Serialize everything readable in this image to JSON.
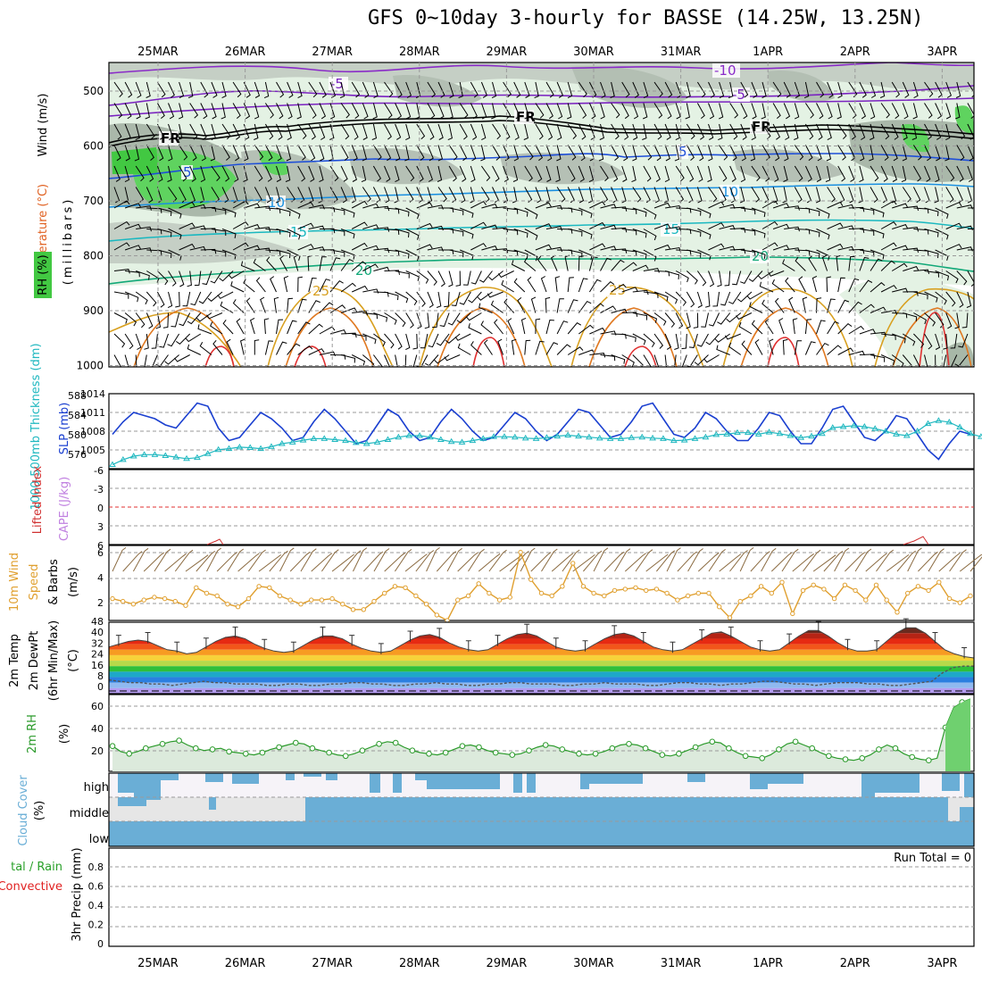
{
  "title": "GFS 0~10day 3-hourly for BASSE (14.25W, 13.25N)",
  "dates": [
    "25MAR",
    "26MAR",
    "27MAR",
    "28MAR",
    "29MAR",
    "30MAR",
    "31MAR",
    "1APR",
    "2APR",
    "3APR"
  ],
  "colors": {
    "frame": "#000000",
    "grid": "#9a9a9a",
    "rh_light": "#e4f2e4",
    "rh_mid": "#a8b8a8",
    "rh_high": "#5fd35f",
    "t_m10": "#8a2bc8",
    "t_m5": "#7a22c0",
    "t_fr": "#000000",
    "t_5": "#1f4fd8",
    "t_10": "#1a8fe0",
    "t_15": "#1ab8c0",
    "t_20": "#12a878",
    "t_25": "#d8a020",
    "t_30": "#e07820",
    "t_35": "#e03030",
    "slp": "#1a3fd0",
    "thickness": "#20b8c0",
    "lifted": "#d03030",
    "cape": "#c080e0",
    "wind10": "#e0a030",
    "dewpt": "#555555",
    "rh2m": "#2a9a2a",
    "cloud": "#6aaed6",
    "cloud_gray": "#e6e6e6",
    "cloud_white": "#f6f3f8",
    "precip_green": "#2aa02a",
    "precip_red": "#e02020"
  },
  "panels": {
    "upper": {
      "ylabel_wind": "Wind (m/s)",
      "ylabel_temp": "Temperature (°C)",
      "ylabel_mb": "(millibars)",
      "ylabel_rh": "RH (%)",
      "levels": [
        "500",
        "600",
        "700",
        "800",
        "900",
        "1000"
      ],
      "contour_labels": [
        {
          "text": "-10",
          "cls": "t_m10"
        },
        {
          "text": "-5",
          "cls": "t_m5"
        },
        {
          "text": "-5",
          "cls": "t_m5"
        },
        {
          "text": "FR",
          "cls": "t_fr"
        },
        {
          "text": "FR",
          "cls": "t_fr"
        },
        {
          "text": "FR",
          "cls": "t_fr"
        },
        {
          "text": "5",
          "cls": "t_5"
        },
        {
          "text": "5",
          "cls": "t_5"
        },
        {
          "text": "10",
          "cls": "t_10"
        },
        {
          "text": "10",
          "cls": "t_10"
        },
        {
          "text": "15",
          "cls": "t_15"
        },
        {
          "text": "15",
          "cls": "t_15"
        },
        {
          "text": "20",
          "cls": "t_20"
        },
        {
          "text": "20",
          "cls": "t_20"
        },
        {
          "text": "25",
          "cls": "t_25"
        },
        {
          "text": "25",
          "cls": "t_25"
        }
      ]
    },
    "slp": {
      "ylabel_thick": "1000-500mb Thickness (dm)",
      "ylabel_slp": "SLP (mb)",
      "left_ticks": [
        "588",
        "584",
        "580",
        "576"
      ],
      "right_ticks": [
        "1014",
        "1011",
        "1008",
        "1005"
      ]
    },
    "stability": {
      "ylabel_cape": "CAPE (J/kg)",
      "ylabel_li": "Lifted Index",
      "ticks": [
        "-6",
        "-3",
        "0",
        "3",
        "6"
      ]
    },
    "wind10": {
      "ylabel_a": "10m Wind",
      "ylabel_b": "Speed",
      "ylabel_c": "& Barbs",
      "ylabel_unit": "(m/s)",
      "ticks": [
        "6",
        "4",
        "2"
      ]
    },
    "temp2m": {
      "ylabel_a": "2m Temp",
      "ylabel_b": "2m DewPt",
      "ylabel_c": "(6hr Min/Max)",
      "ylabel_unit": "(°C)",
      "ticks": [
        "48",
        "40",
        "32",
        "24",
        "16",
        "8",
        "0"
      ]
    },
    "rh2m": {
      "ylabel": "2m RH",
      "ylabel_unit": "(%)",
      "ticks": [
        "60",
        "40",
        "20"
      ]
    },
    "cloud": {
      "ylabel": "Cloud Cover",
      "ylabel_unit": "(%)",
      "rows": [
        "high",
        "middle",
        "low"
      ]
    },
    "precip": {
      "ylabel_a": "3hr Precip (mm)",
      "ylabel_total": "tal / Rain",
      "ylabel_conv": "Convective",
      "run_total": "Run Total = 0",
      "ticks": [
        "0.8",
        "0.6",
        "0.4",
        "0.2",
        "0"
      ]
    }
  },
  "chart_data": [
    {
      "type": "line",
      "name": "SLP",
      "x_dates_start": "25MAR",
      "step_hours": 3,
      "ylim": [
        1002,
        1014
      ],
      "series": [
        {
          "name": "SLP (mb)",
          "values": [
            1007.5,
            1009.5,
            1011,
            1010.5,
            1010,
            1009,
            1008.5,
            1010.5,
            1012.5,
            1012,
            1008.5,
            1006.5,
            1007,
            1009,
            1011,
            1010,
            1008.5,
            1006.5,
            1007,
            1009.5,
            1011.5,
            1010,
            1008,
            1006,
            1006.5,
            1009,
            1011.5,
            1010.5,
            1008,
            1006.5,
            1007,
            1009.5,
            1011.5,
            1010,
            1008,
            1006.5,
            1007,
            1009,
            1011,
            1010,
            1008,
            1006.5,
            1007.5,
            1009.5,
            1011.5,
            1011,
            1009,
            1007,
            1007.5,
            1009.5,
            1012,
            1012.5,
            1010,
            1007.5,
            1007,
            1008.5,
            1011,
            1010,
            1008,
            1006.5,
            1006.5,
            1008.5,
            1011,
            1010.5,
            1008,
            1006,
            1006,
            1008.5,
            1011.5,
            1012,
            1009.5,
            1007,
            1006.5,
            1008,
            1010.5,
            1010,
            1007.5,
            1005,
            1003.5,
            1006,
            1008,
            1007.5
          ]
        },
        {
          "name": "1000-500mb Thickness (dm)",
          "values": [
            574.8,
            575.8,
            576.5,
            576.8,
            576.8,
            576.6,
            576.3,
            576,
            576.2,
            577,
            577.8,
            578,
            578.3,
            578.2,
            578,
            578.4,
            579,
            579.3,
            579.7,
            580,
            580,
            579.8,
            579.6,
            579.2,
            579,
            579.3,
            579.8,
            580.3,
            580.6,
            580.6,
            580.3,
            579.8,
            579.4,
            579.3,
            579.6,
            580,
            580.4,
            580.4,
            580.3,
            580.1,
            580,
            580.2,
            580.5,
            580.7,
            580.5,
            580.3,
            580.1,
            580,
            580,
            580.2,
            580.3,
            580.1,
            580,
            579.6,
            579.7,
            580,
            580.3,
            580.8,
            580.9,
            581.2,
            581.2,
            580.9,
            581.3,
            581,
            580.6,
            580.2,
            580.5,
            581,
            582.2,
            582.4,
            582.6,
            582.4,
            582,
            581.5,
            580.9,
            580.6,
            581.5,
            583,
            583.6,
            583.3,
            582.3,
            581,
            580.4
          ]
        }
      ]
    },
    {
      "type": "line",
      "name": "10m Wind Speed",
      "ylim": [
        1,
        6.5
      ],
      "values": [
        2.6,
        2.4,
        2.2,
        2.5,
        2.7,
        2.6,
        2.4,
        2.1,
        3.4,
        3.0,
        2.8,
        2.2,
        2.0,
        2.6,
        3.5,
        3.4,
        2.8,
        2.5,
        2.2,
        2.5,
        2.5,
        2.6,
        2.2,
        1.8,
        1.8,
        2.4,
        3.0,
        3.5,
        3.4,
        2.8,
        2.2,
        1.4,
        1.0,
        2.5,
        2.8,
        3.7,
        3.0,
        2.5,
        2.7,
        6.0,
        4.0,
        3.0,
        2.8,
        3.5,
        5.2,
        3.5,
        3.0,
        2.8,
        3.2,
        3.3,
        3.4,
        3.2,
        3.3,
        3.0,
        2.5,
        2.8,
        3.0,
        3.0,
        2.0,
        1.2,
        2.4,
        2.8,
        3.5,
        3.0,
        3.8,
        1.5,
        3.2,
        3.6,
        3.3,
        2.6,
        3.6,
        3.2,
        2.5,
        3.6,
        2.5,
        1.6,
        3.0,
        3.5,
        3.2,
        3.8,
        2.6,
        2.3,
        2.8
      ]
    },
    {
      "type": "area",
      "name": "2m Temp",
      "ylim": [
        -4,
        48
      ],
      "values": [
        30,
        32,
        34,
        35,
        34,
        31,
        28,
        27,
        25,
        26,
        30,
        34,
        37,
        38,
        36,
        32,
        29,
        27,
        26,
        27,
        31,
        35,
        38,
        38,
        36,
        32,
        29,
        27,
        26,
        27,
        31,
        35,
        38,
        39,
        37,
        33,
        30,
        28,
        27,
        28,
        32,
        36,
        39,
        40,
        38,
        34,
        30,
        28,
        27,
        28,
        32,
        36,
        39,
        40,
        38,
        34,
        30,
        28,
        27,
        28,
        32,
        36,
        40,
        41,
        38,
        34,
        30,
        28,
        27,
        28,
        33,
        38,
        42,
        42,
        38,
        33,
        29,
        27,
        27,
        28,
        34,
        40,
        44,
        44,
        40,
        34,
        28,
        25,
        23,
        22
      ]
    },
    {
      "type": "line",
      "name": "2m DewPt",
      "values": [
        6,
        5,
        4,
        4,
        3,
        3,
        2,
        3,
        4,
        5,
        4,
        4,
        3,
        3,
        3,
        2,
        2,
        3,
        3,
        2,
        2,
        3,
        3,
        4,
        4,
        3,
        3,
        2,
        2,
        3,
        3,
        4,
        3,
        3,
        2,
        2,
        3,
        3,
        4,
        4,
        3,
        3,
        3,
        2,
        2,
        3,
        3,
        4,
        3,
        3,
        3,
        2,
        2,
        3,
        4,
        4,
        3,
        3,
        2,
        3,
        3,
        4,
        5,
        5,
        4,
        3,
        3,
        2,
        3,
        4,
        4,
        4,
        3,
        3,
        2,
        2,
        3,
        4,
        5,
        11,
        15,
        16,
        16
      ]
    },
    {
      "type": "area",
      "name": "2m RH",
      "ylim": [
        0,
        70
      ],
      "values": [
        23,
        18,
        16,
        18,
        21,
        23,
        25,
        27,
        28,
        24,
        21,
        19,
        20,
        21,
        18,
        17,
        16,
        15,
        17,
        20,
        22,
        24,
        26,
        25,
        21,
        19,
        17,
        15,
        14,
        16,
        19,
        22,
        25,
        27,
        26,
        22,
        19,
        17,
        16,
        15,
        17,
        20,
        23,
        24,
        22,
        19,
        17,
        16,
        15,
        16,
        19,
        22,
        24,
        23,
        20,
        18,
        16,
        15,
        16,
        18,
        21,
        24,
        25,
        24,
        21,
        18,
        15,
        14,
        16,
        19,
        22,
        25,
        27,
        26,
        21,
        17,
        14,
        13,
        12,
        15,
        20,
        25,
        27,
        24,
        21,
        17,
        14,
        12,
        11,
        10,
        12,
        15,
        20,
        24,
        21,
        16,
        13,
        11,
        10,
        12,
        40,
        58,
        63,
        66
      ]
    },
    {
      "type": "bar",
      "name": "Precip",
      "ylim": [
        0,
        1
      ],
      "values": []
    }
  ]
}
